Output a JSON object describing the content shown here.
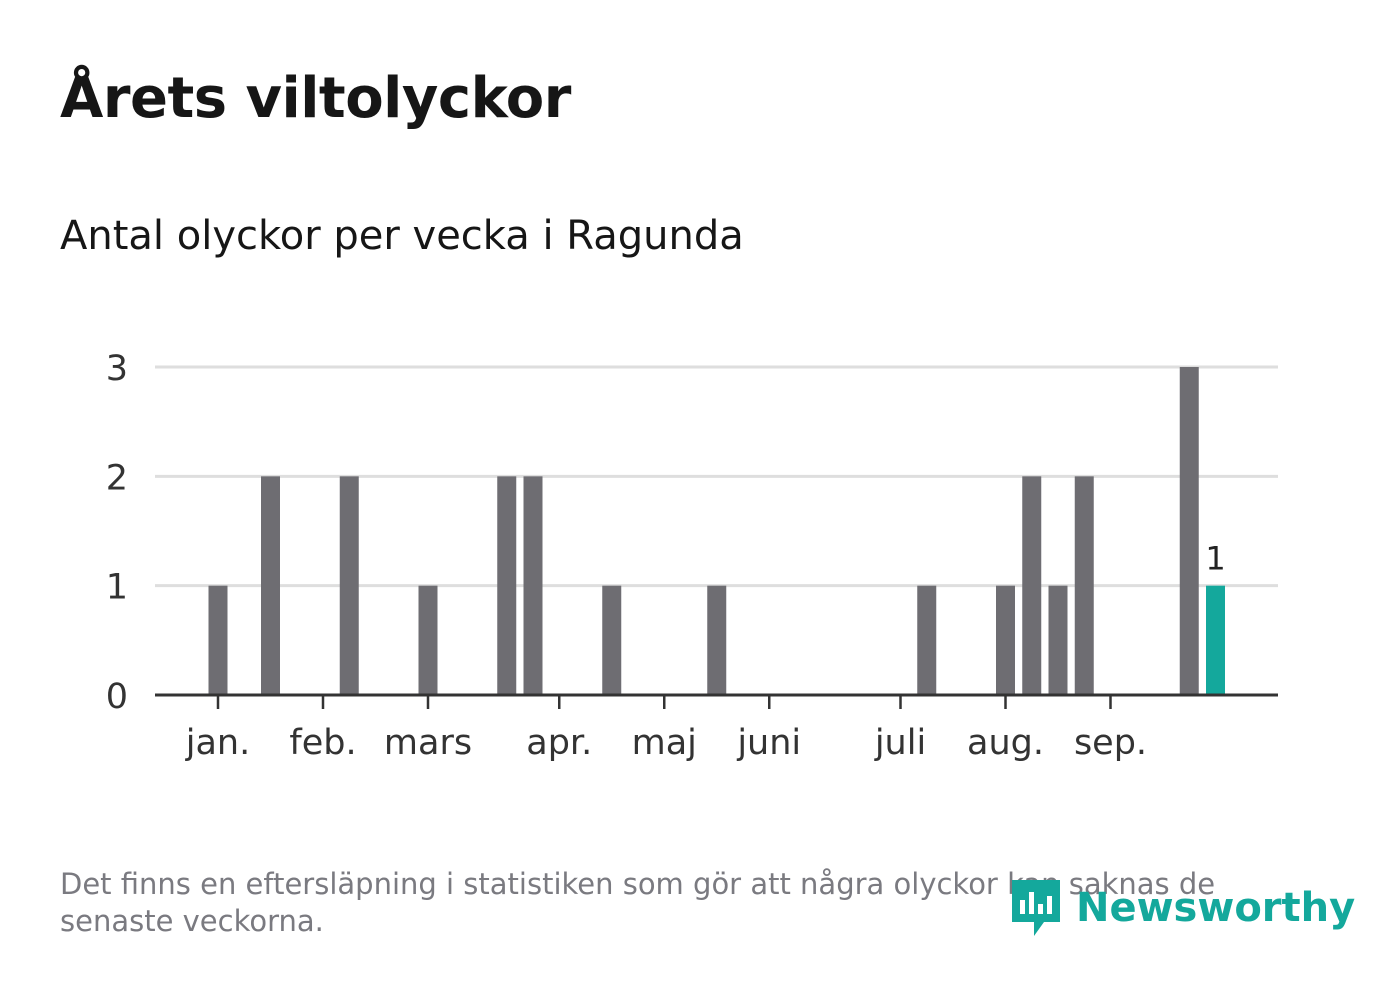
{
  "header": {
    "title": "Årets viltolyckor",
    "subtitle": "Antal olyckor per vecka i Ragunda"
  },
  "chart_data": {
    "type": "bar",
    "title": "Årets viltolyckor",
    "subtitle": "Antal olyckor per vecka i Ragunda",
    "xlabel": "",
    "ylabel": "",
    "ylim": [
      0,
      3
    ],
    "yticks": [
      "0",
      "1",
      "2",
      "3"
    ],
    "grid": true,
    "month_labels": [
      "jan.",
      "feb.",
      "mars",
      "apr.",
      "maj",
      "juni",
      "juli",
      "aug.",
      "sep."
    ],
    "month_start_weeks": [
      1,
      5,
      9,
      14,
      18,
      22,
      27,
      31,
      35
    ],
    "weeks": [
      1,
      2,
      3,
      4,
      5,
      6,
      7,
      8,
      9,
      10,
      11,
      12,
      13,
      14,
      15,
      16,
      17,
      18,
      19,
      20,
      21,
      22,
      23,
      24,
      25,
      26,
      27,
      28,
      29,
      30,
      31,
      32,
      33,
      34,
      35,
      36,
      37,
      38,
      39
    ],
    "values": [
      1,
      0,
      2,
      0,
      0,
      2,
      0,
      0,
      1,
      0,
      0,
      2,
      2,
      0,
      0,
      1,
      0,
      0,
      0,
      1,
      0,
      0,
      0,
      0,
      0,
      0,
      0,
      1,
      0,
      0,
      1,
      2,
      1,
      2,
      0,
      0,
      0,
      3,
      1
    ],
    "highlight_index": 38,
    "highlight_label": "1",
    "colors": {
      "bar": "#6e6d72",
      "highlight": "#14a89c",
      "grid": "#dedede",
      "axis": "#333333",
      "text": "#333333"
    }
  },
  "footer": {
    "note": "Det finns en eftersläpning i statistiken som gör att några olyckor kan saknas de senaste veckorna.",
    "brand": "Newsworthy",
    "brand_icon": "bar-chart-speech-bubble-icon"
  }
}
